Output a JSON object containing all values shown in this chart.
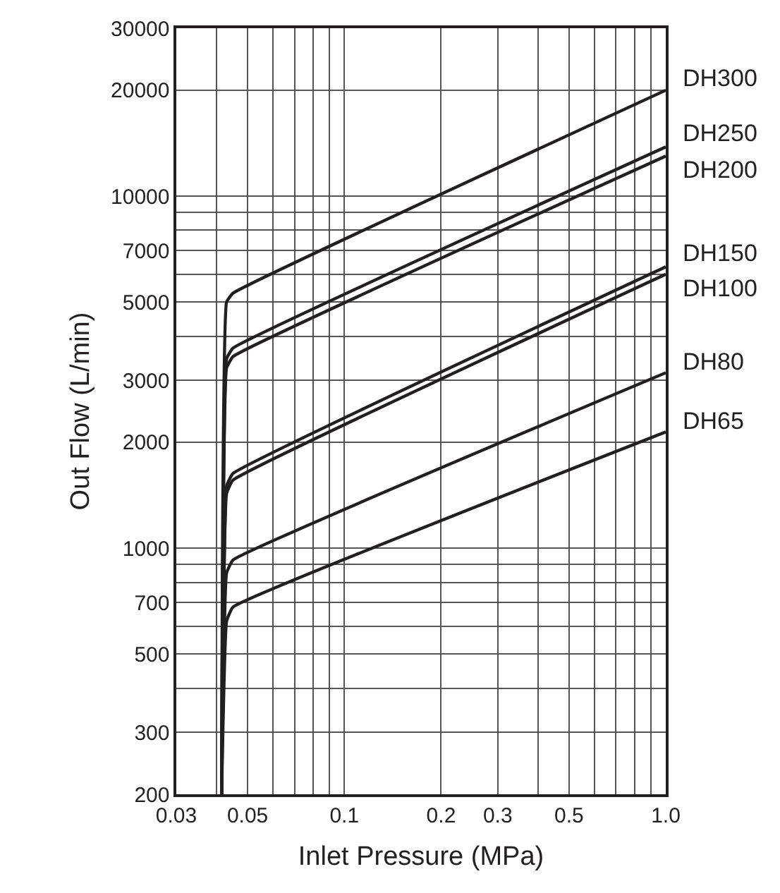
{
  "chart_data": {
    "type": "line",
    "xlabel": "Inlet Pressure (MPa)",
    "ylabel": "Out Flow (L/min)",
    "log": "xy",
    "grid": true,
    "legend": false,
    "marker": "none",
    "line_style": "solid",
    "xlim": [
      0.03,
      1.0
    ],
    "xticks": [
      0.03,
      {
        "value": 0.04,
        "label": null
      },
      0.05,
      {
        "value": 0.06,
        "label": null
      },
      {
        "value": 0.07,
        "label": null
      },
      {
        "value": 0.08,
        "label": null
      },
      {
        "value": 0.09,
        "label": null
      },
      0.1,
      0.2,
      0.3,
      {
        "value": 0.4,
        "label": null
      },
      0.5,
      {
        "value": 0.6,
        "label": null
      },
      {
        "value": 0.7,
        "label": null
      },
      {
        "value": 0.8,
        "label": null
      },
      {
        "value": 0.9,
        "label": null
      },
      {
        "value": 1.0,
        "label": "1.0"
      }
    ],
    "ylim": [
      200,
      30000
    ],
    "yticks": [
      200,
      300,
      {
        "value": 400,
        "label": null
      },
      500,
      {
        "value": 600,
        "label": null
      },
      700,
      {
        "value": 800,
        "label": null
      },
      {
        "value": 900,
        "label": null
      },
      1000,
      2000,
      3000,
      {
        "value": 4000,
        "label": null
      },
      5000,
      {
        "value": 6000,
        "label": null
      },
      7000,
      {
        "value": 8000,
        "label": null
      },
      {
        "value": 9000,
        "label": null
      },
      10000,
      20000,
      30000
    ],
    "series": [
      {
        "name": "DH300",
        "color": "#231f20",
        "x": [
          0.0415,
          0.043,
          0.045,
          1.0
        ],
        "values": [
          200,
          5000,
          5300,
          20000
        ]
      },
      {
        "name": "DH250",
        "color": "#231f20",
        "x": [
          0.0415,
          0.043,
          0.045,
          1.0
        ],
        "values": [
          200,
          3450,
          3700,
          13800
        ]
      },
      {
        "name": "DH200",
        "color": "#231f20",
        "x": [
          0.0415,
          0.043,
          0.045,
          1.0
        ],
        "values": [
          200,
          3250,
          3500,
          13000
        ]
      },
      {
        "name": "DH150",
        "color": "#231f20",
        "x": [
          0.0415,
          0.043,
          0.045,
          1.0
        ],
        "values": [
          200,
          1500,
          1630,
          6300
        ]
      },
      {
        "name": "DH100",
        "color": "#231f20",
        "x": [
          0.0415,
          0.043,
          0.045,
          1.0
        ],
        "values": [
          200,
          1430,
          1560,
          6000
        ]
      },
      {
        "name": "DH80",
        "color": "#231f20",
        "x": [
          0.0415,
          0.043,
          0.045,
          1.0
        ],
        "values": [
          200,
          850,
          925,
          3150
        ]
      },
      {
        "name": "DH65",
        "color": "#231f20",
        "x": [
          0.0415,
          0.043,
          0.045,
          1.0
        ],
        "values": [
          200,
          620,
          680,
          2140
        ]
      }
    ]
  }
}
